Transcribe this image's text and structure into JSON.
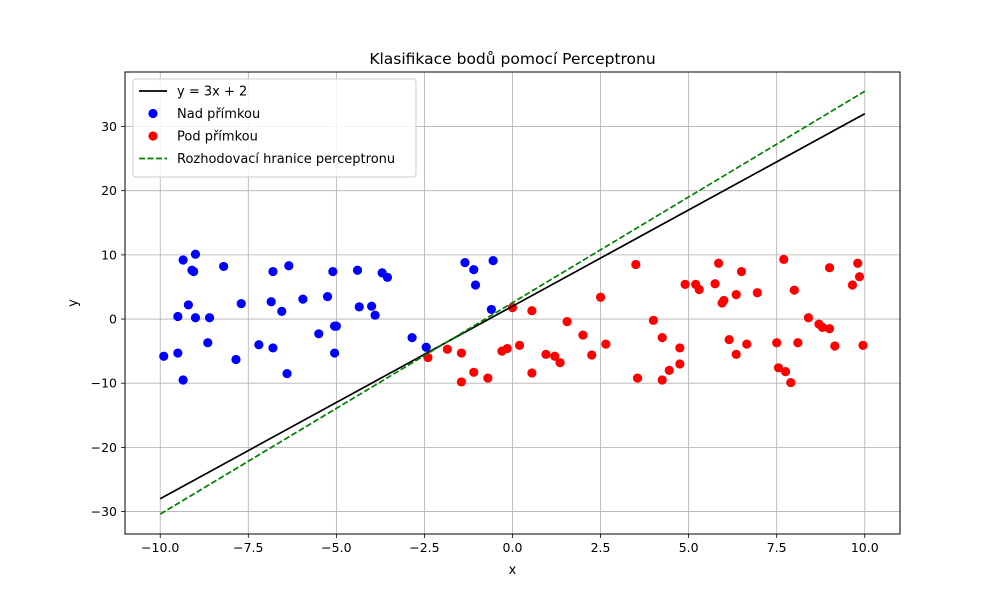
{
  "chart_data": {
    "type": "scatter",
    "title": "Klasifikace bodů pomocí Perceptronu",
    "xlabel": "x",
    "ylabel": "y",
    "xlim": [
      -11,
      11
    ],
    "ylim": [
      -33.5,
      38.5
    ],
    "xticks": [
      -10.0,
      -7.5,
      -5.0,
      -2.5,
      0.0,
      2.5,
      5.0,
      7.5,
      10.0
    ],
    "xtick_labels": [
      "−10.0",
      "−7.5",
      "−5.0",
      "−2.5",
      "0.0",
      "2.5",
      "5.0",
      "7.5",
      "10.0"
    ],
    "yticks": [
      -30,
      -20,
      -10,
      0,
      10,
      20,
      30
    ],
    "ytick_labels": [
      "−30",
      "−20",
      "−10",
      "0",
      "10",
      "20",
      "30"
    ],
    "grid": true,
    "legend_position": "top-left",
    "series": [
      {
        "name": "y = 3x + 2",
        "kind": "line",
        "style": "solid",
        "color": "#000000",
        "points": [
          [
            -10,
            -28
          ],
          [
            10,
            32
          ]
        ]
      },
      {
        "name": "Nad přímkou",
        "kind": "scatter",
        "color": "#0000ff",
        "points": [
          [
            -9.9,
            -5.8
          ],
          [
            -9.5,
            0.4
          ],
          [
            -9.5,
            -5.3
          ],
          [
            -9.35,
            9.2
          ],
          [
            -9.35,
            -9.5
          ],
          [
            -9.2,
            2.2
          ],
          [
            -9.1,
            7.6
          ],
          [
            -9.05,
            7.4
          ],
          [
            -9.0,
            10.1
          ],
          [
            -9.0,
            0.2
          ],
          [
            -8.65,
            -3.7
          ],
          [
            -8.6,
            0.2
          ],
          [
            -8.2,
            8.2
          ],
          [
            -7.85,
            -6.3
          ],
          [
            -7.7,
            2.4
          ],
          [
            -7.2,
            -4.0
          ],
          [
            -6.85,
            2.7
          ],
          [
            -6.8,
            -4.5
          ],
          [
            -6.8,
            7.4
          ],
          [
            -6.55,
            1.2
          ],
          [
            -6.4,
            -8.5
          ],
          [
            -6.35,
            8.3
          ],
          [
            -5.95,
            3.1
          ],
          [
            -5.5,
            -2.3
          ],
          [
            -5.25,
            3.5
          ],
          [
            -5.1,
            7.4
          ],
          [
            -5.05,
            -1.1
          ],
          [
            -5.0,
            -1.1
          ],
          [
            -5.05,
            -5.3
          ],
          [
            -4.4,
            7.6
          ],
          [
            -4.35,
            1.9
          ],
          [
            -4.0,
            2.0
          ],
          [
            -3.9,
            0.6
          ],
          [
            -3.7,
            7.2
          ],
          [
            -3.55,
            6.5
          ],
          [
            -2.85,
            -2.9
          ],
          [
            -2.45,
            -4.4
          ],
          [
            -1.35,
            8.8
          ],
          [
            -1.1,
            7.7
          ],
          [
            -1.05,
            5.3
          ],
          [
            -0.55,
            9.1
          ],
          [
            -0.6,
            1.5
          ]
        ]
      },
      {
        "name": "Pod přímkou",
        "kind": "scatter",
        "color": "#ff0000",
        "points": [
          [
            -2.4,
            -6.0
          ],
          [
            -1.85,
            -4.7
          ],
          [
            -1.45,
            -5.3
          ],
          [
            -1.45,
            -9.8
          ],
          [
            -1.1,
            -8.3
          ],
          [
            -0.7,
            -9.2
          ],
          [
            -0.3,
            -5.0
          ],
          [
            -0.15,
            -4.6
          ],
          [
            0.0,
            1.8
          ],
          [
            0.2,
            -4.1
          ],
          [
            0.55,
            1.3
          ],
          [
            0.55,
            -8.4
          ],
          [
            0.95,
            -5.5
          ],
          [
            1.2,
            -5.8
          ],
          [
            1.35,
            -6.8
          ],
          [
            1.55,
            -0.4
          ],
          [
            2.0,
            -2.5
          ],
          [
            2.25,
            -5.6
          ],
          [
            2.5,
            3.4
          ],
          [
            2.65,
            -3.9
          ],
          [
            3.5,
            8.5
          ],
          [
            3.55,
            -9.2
          ],
          [
            4.0,
            -0.2
          ],
          [
            4.25,
            -2.9
          ],
          [
            4.25,
            -9.5
          ],
          [
            4.45,
            -8.0
          ],
          [
            4.75,
            -4.5
          ],
          [
            4.75,
            -7.0
          ],
          [
            4.9,
            5.4
          ],
          [
            5.2,
            5.4
          ],
          [
            5.3,
            4.6
          ],
          [
            5.75,
            5.5
          ],
          [
            5.85,
            8.7
          ],
          [
            5.95,
            2.5
          ],
          [
            6.0,
            2.9
          ],
          [
            6.15,
            -3.2
          ],
          [
            6.35,
            3.8
          ],
          [
            6.35,
            -5.5
          ],
          [
            6.5,
            7.4
          ],
          [
            6.65,
            -3.9
          ],
          [
            6.95,
            4.1
          ],
          [
            7.5,
            -3.7
          ],
          [
            7.55,
            -7.6
          ],
          [
            7.7,
            9.3
          ],
          [
            7.75,
            -8.2
          ],
          [
            7.9,
            -9.9
          ],
          [
            8.0,
            4.5
          ],
          [
            8.1,
            -3.7
          ],
          [
            8.4,
            0.2
          ],
          [
            8.7,
            -0.8
          ],
          [
            8.8,
            -1.3
          ],
          [
            9.0,
            8.0
          ],
          [
            9.0,
            -1.5
          ],
          [
            9.15,
            -4.2
          ],
          [
            9.65,
            5.3
          ],
          [
            9.8,
            8.7
          ],
          [
            9.85,
            6.6
          ],
          [
            9.95,
            -4.1
          ]
        ]
      },
      {
        "name": "Rozhodovací hranice perceptronu",
        "kind": "line",
        "style": "dashed",
        "color": "#008000",
        "points": [
          [
            -10,
            -30.4
          ],
          [
            10,
            35.5
          ]
        ]
      }
    ]
  }
}
